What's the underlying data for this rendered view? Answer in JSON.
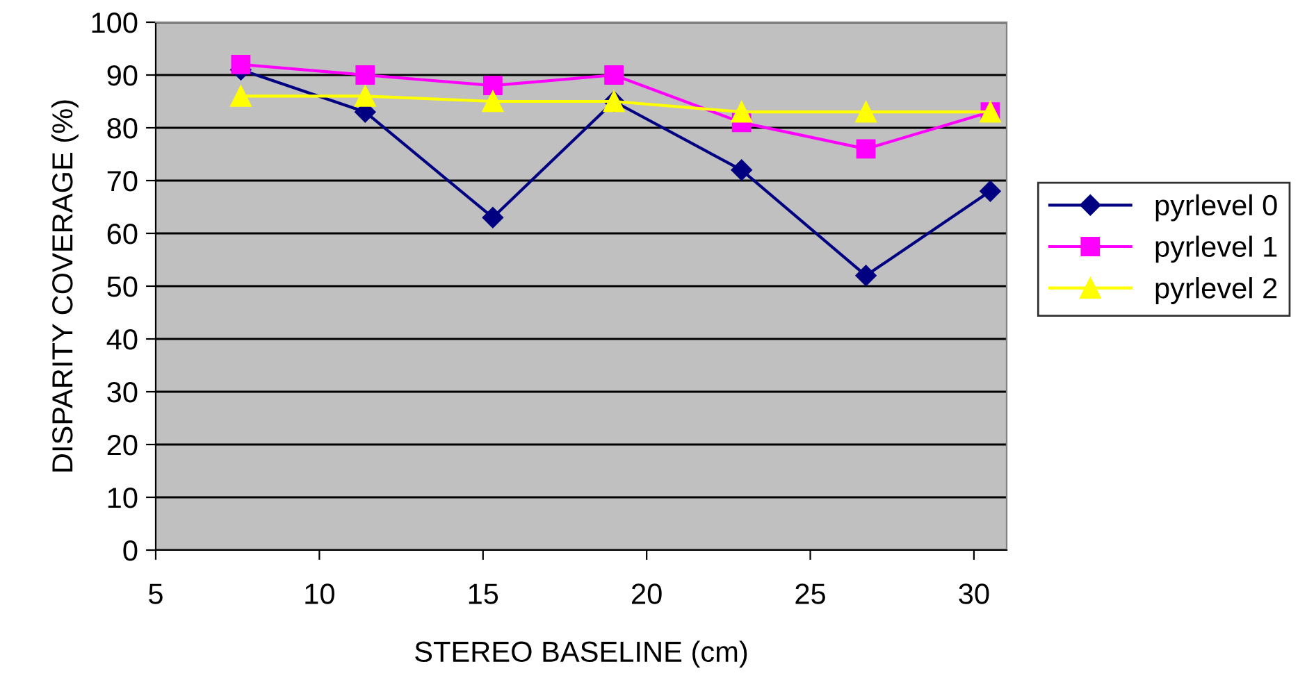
{
  "chart_data": {
    "type": "line",
    "xlabel": "STEREO BASELINE (cm)",
    "ylabel": "DISPARITY COVERAGE (%)",
    "x": [
      7.6,
      11.4,
      15.3,
      19.0,
      22.9,
      26.7,
      30.5
    ],
    "series": [
      {
        "name": "pyrlevel 0",
        "color": "#000080",
        "marker": "diamond",
        "values": [
          91,
          83,
          63,
          85,
          72,
          52,
          68
        ]
      },
      {
        "name": "pyrlevel 1",
        "color": "#ff00ff",
        "marker": "square",
        "values": [
          92,
          90,
          88,
          90,
          81,
          76,
          83
        ]
      },
      {
        "name": "pyrlevel 2",
        "color": "#ffff00",
        "marker": "triangle",
        "values": [
          86,
          86,
          85,
          85,
          83,
          83,
          83
        ]
      }
    ],
    "xlim": [
      5,
      31
    ],
    "xticks": [
      5,
      10,
      15,
      20,
      25,
      30
    ],
    "ylim": [
      0,
      100
    ],
    "yticks": [
      0,
      10,
      20,
      30,
      40,
      50,
      60,
      70,
      80,
      90,
      100
    ],
    "grid": "y",
    "legend": "right",
    "line_style": "solid"
  }
}
